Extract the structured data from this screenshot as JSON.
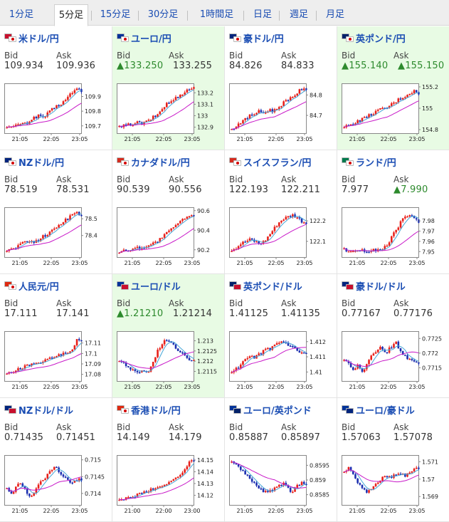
{
  "tabs": [
    {
      "label": "1分足",
      "active": false
    },
    {
      "label": "5分足",
      "active": true
    },
    {
      "label": "15分足",
      "active": false
    },
    {
      "label": "30分足",
      "active": false
    },
    {
      "label": "1時間足",
      "active": false
    },
    {
      "label": "日足",
      "active": false
    },
    {
      "label": "週足",
      "active": false
    },
    {
      "label": "月足",
      "active": false
    }
  ],
  "bid_label": "Bid",
  "ask_label": "Ask",
  "pairs": [
    {
      "name": "米ドル/円",
      "flags": [
        "us-flag-icon",
        "jp-flag-icon"
      ],
      "bid": "109.934",
      "ask": "109.936",
      "bid_up": false,
      "ask_up": false,
      "highlight": false,
      "chart_data": {
        "type": "candlestick",
        "xticks": [
          "21:05",
          "22:05",
          "23:05"
        ],
        "yticks": [
          "109.9",
          "109.8",
          "109.7"
        ],
        "ylim": [
          109.66,
          109.98
        ],
        "trend": [
          109.7,
          109.69,
          109.7,
          109.72,
          109.71,
          109.74,
          109.76,
          109.77,
          109.76,
          109.79,
          109.82,
          109.84,
          109.86,
          109.89,
          109.93,
          109.95,
          109.94
        ]
      }
    },
    {
      "name": "ユーロ/円",
      "flags": [
        "eu-flag-icon",
        "jp-flag-icon"
      ],
      "bid": "133.250",
      "ask": "133.255",
      "bid_up": true,
      "ask_up": false,
      "highlight": true,
      "chart_data": {
        "type": "candlestick",
        "xticks": [
          "21:05",
          "22:05",
          "23:05"
        ],
        "yticks": [
          "133.2",
          "133.1",
          "133",
          "132.9"
        ],
        "ylim": [
          132.86,
          133.27
        ],
        "trend": [
          132.9,
          132.91,
          132.92,
          132.93,
          132.94,
          132.93,
          132.95,
          132.98,
          133.0,
          133.05,
          133.1,
          133.12,
          133.15,
          133.18,
          133.21,
          133.23,
          133.25
        ]
      }
    },
    {
      "name": "豪ドル/円",
      "flags": [
        "au-flag-icon",
        "jp-flag-icon"
      ],
      "bid": "84.826",
      "ask": "84.833",
      "bid_up": false,
      "ask_up": false,
      "highlight": false,
      "chart_data": {
        "type": "candlestick",
        "xticks": [
          "21:05",
          "22:05",
          "23:05"
        ],
        "yticks": [
          "84.8",
          "84.7"
        ],
        "ylim": [
          84.62,
          84.85
        ],
        "trend": [
          84.63,
          84.65,
          84.67,
          84.68,
          84.7,
          84.71,
          84.72,
          84.71,
          84.73,
          84.72,
          84.74,
          84.76,
          84.78,
          84.79,
          84.81,
          84.83,
          84.82
        ]
      }
    },
    {
      "name": "英ポンド/円",
      "flags": [
        "gb-flag-icon",
        "jp-flag-icon"
      ],
      "bid": "155.140",
      "ask": "155.150",
      "bid_up": true,
      "ask_up": true,
      "highlight": true,
      "chart_data": {
        "type": "candlestick",
        "xticks": [
          "21:05",
          "22:05",
          "23:05"
        ],
        "yticks": [
          "155.2",
          "155",
          "154.8"
        ],
        "ylim": [
          154.78,
          155.22
        ],
        "trend": [
          154.82,
          154.84,
          154.86,
          154.88,
          154.9,
          154.92,
          154.95,
          154.97,
          154.99,
          155.0,
          155.03,
          155.06,
          155.09,
          155.11,
          155.14,
          155.16,
          155.14
        ]
      }
    },
    {
      "name": "NZドル/円",
      "flags": [
        "nz-flag-icon",
        "jp-flag-icon"
      ],
      "bid": "78.519",
      "ask": "78.531",
      "bid_up": false,
      "ask_up": false,
      "highlight": false,
      "chart_data": {
        "type": "candlestick",
        "xticks": [
          "21:05",
          "22:05",
          "23:05"
        ],
        "yticks": [
          "78.5",
          "78.4"
        ],
        "ylim": [
          78.28,
          78.56
        ],
        "trend": [
          78.31,
          78.32,
          78.33,
          78.35,
          78.36,
          78.37,
          78.36,
          78.38,
          78.4,
          78.41,
          78.44,
          78.46,
          78.48,
          78.5,
          78.53,
          78.54,
          78.52
        ]
      }
    },
    {
      "name": "カナダドル/円",
      "flags": [
        "ca-flag-icon",
        "jp-flag-icon"
      ],
      "bid": "90.539",
      "ask": "90.556",
      "bid_up": false,
      "ask_up": false,
      "highlight": false,
      "chart_data": {
        "type": "candlestick",
        "xticks": [
          "21:05",
          "22:05",
          "23:05"
        ],
        "yticks": [
          "90.6",
          "90.4",
          "90.2"
        ],
        "ylim": [
          90.14,
          90.62
        ],
        "trend": [
          90.18,
          90.19,
          90.2,
          90.21,
          90.22,
          90.23,
          90.24,
          90.26,
          90.28,
          90.32,
          90.36,
          90.4,
          90.45,
          90.48,
          90.52,
          90.55,
          90.54
        ]
      }
    },
    {
      "name": "スイスフラン/円",
      "flags": [
        "ch-flag-icon",
        "jp-flag-icon"
      ],
      "bid": "122.193",
      "ask": "122.211",
      "bid_up": false,
      "ask_up": false,
      "highlight": false,
      "chart_data": {
        "type": "candlestick",
        "xticks": [
          "21:05",
          "22:05",
          "23:05"
        ],
        "yticks": [
          "122.2",
          "122.1"
        ],
        "ylim": [
          122.03,
          122.26
        ],
        "trend": [
          122.06,
          122.07,
          122.09,
          122.1,
          122.11,
          122.1,
          122.09,
          122.1,
          122.13,
          122.16,
          122.19,
          122.21,
          122.22,
          122.23,
          122.22,
          122.2,
          122.19
        ]
      }
    },
    {
      "name": "ランド/円",
      "flags": [
        "za-flag-icon",
        "jp-flag-icon"
      ],
      "bid": "7.977",
      "ask": "7.990",
      "bid_up": false,
      "ask_up": true,
      "highlight": false,
      "chart_data": {
        "type": "candlestick",
        "xticks": [
          "21:05",
          "22:05",
          "23:05"
        ],
        "yticks": [
          "7.98",
          "7.97",
          "7.96",
          "7.95"
        ],
        "ylim": [
          7.946,
          7.992
        ],
        "trend": [
          7.952,
          7.951,
          7.951,
          7.952,
          7.951,
          7.95,
          7.951,
          7.952,
          7.951,
          7.955,
          7.962,
          7.97,
          7.978,
          7.984,
          7.986,
          7.982,
          7.978
        ]
      }
    },
    {
      "name": "人民元/円",
      "flags": [
        "cn-flag-icon",
        "jp-flag-icon"
      ],
      "bid": "17.111",
      "ask": "17.141",
      "bid_up": false,
      "ask_up": false,
      "highlight": false,
      "chart_data": {
        "type": "candlestick",
        "xticks": [
          "21:05",
          "22:05",
          "23:05"
        ],
        "yticks": [
          "17.11",
          "17.1",
          "17.09",
          "17.08"
        ],
        "ylim": [
          17.075,
          17.12
        ],
        "trend": [
          17.08,
          17.082,
          17.084,
          17.086,
          17.088,
          17.089,
          17.09,
          17.092,
          17.093,
          17.095,
          17.096,
          17.098,
          17.099,
          17.101,
          17.103,
          17.114,
          17.111
        ]
      }
    },
    {
      "name": "ユーロ/ドル",
      "flags": [
        "eu-flag-icon",
        "us-flag-icon"
      ],
      "bid": "1.21210",
      "ask": "1.21214",
      "bid_up": true,
      "ask_up": false,
      "highlight": true,
      "chart_data": {
        "type": "candlestick",
        "xticks": [
          "21:05",
          "22:05",
          "23:05"
        ],
        "yticks": [
          "1.213",
          "1.2125",
          "1.212",
          "1.2115"
        ],
        "ylim": [
          1.2111,
          1.2134
        ],
        "trend": [
          1.212,
          1.2119,
          1.2117,
          1.2115,
          1.2114,
          1.2116,
          1.2114,
          1.2118,
          1.2124,
          1.2128,
          1.2131,
          1.213,
          1.2127,
          1.2125,
          1.2123,
          1.2121,
          1.2121
        ]
      }
    },
    {
      "name": "英ポンド/ドル",
      "flags": [
        "gb-flag-icon",
        "us-flag-icon"
      ],
      "bid": "1.41125",
      "ask": "1.41135",
      "bid_up": false,
      "ask_up": false,
      "highlight": false,
      "chart_data": {
        "type": "candlestick",
        "xticks": [
          "21:05",
          "22:05",
          "23:05"
        ],
        "yticks": [
          "1.412",
          "1.411",
          "1.41"
        ],
        "ylim": [
          1.4095,
          1.4126
        ],
        "trend": [
          1.41,
          1.4102,
          1.4105,
          1.4108,
          1.411,
          1.4109,
          1.4112,
          1.4114,
          1.4115,
          1.4117,
          1.4119,
          1.412,
          1.4118,
          1.4116,
          1.4114,
          1.4112,
          1.4112
        ]
      }
    },
    {
      "name": "豪ドル/ドル",
      "flags": [
        "au-flag-icon",
        "us-flag-icon"
      ],
      "bid": "0.77167",
      "ask": "0.77176",
      "bid_up": false,
      "ask_up": false,
      "highlight": false,
      "chart_data": {
        "type": "candlestick",
        "xticks": [
          "21:05",
          "22:05",
          "23:05"
        ],
        "yticks": [
          "0.7725",
          "0.772",
          "0.7715"
        ],
        "ylim": [
          0.7711,
          0.7727
        ],
        "trend": [
          0.7718,
          0.7717,
          0.7714,
          0.7716,
          0.7713,
          0.7717,
          0.7719,
          0.7721,
          0.7722,
          0.772,
          0.7722,
          0.7724,
          0.7721,
          0.7719,
          0.7718,
          0.7717,
          0.7717
        ]
      }
    },
    {
      "name": "NZドル/ドル",
      "flags": [
        "nz-flag-icon",
        "us-flag-icon"
      ],
      "bid": "0.71435",
      "ask": "0.71451",
      "bid_up": false,
      "ask_up": false,
      "highlight": false,
      "chart_data": {
        "type": "candlestick",
        "xticks": [
          "21:05",
          "22:05",
          "23:05"
        ],
        "yticks": [
          "0.715",
          "0.7145",
          "0.714"
        ],
        "ylim": [
          0.7137,
          0.7151
        ],
        "trend": [
          0.7142,
          0.714,
          0.7142,
          0.7143,
          0.7141,
          0.7139,
          0.7141,
          0.7143,
          0.7144,
          0.7146,
          0.7148,
          0.7147,
          0.7145,
          0.7144,
          0.7143,
          0.7144,
          0.7144
        ]
      }
    },
    {
      "name": "香港ドル/円",
      "flags": [
        "hk-flag-icon",
        "jp-flag-icon"
      ],
      "bid": "14.149",
      "ask": "14.179",
      "bid_up": false,
      "ask_up": false,
      "highlight": false,
      "chart_data": {
        "type": "candlestick",
        "xticks": [
          "21:00",
          "22:00",
          "23:00"
        ],
        "yticks": [
          "14.15",
          "14.14",
          "14.13",
          "14.12"
        ],
        "ylim": [
          14.113,
          14.153
        ],
        "trend": [
          14.115,
          14.116,
          14.118,
          14.119,
          14.121,
          14.122,
          14.124,
          14.125,
          14.126,
          14.128,
          14.13,
          14.132,
          14.134,
          14.137,
          14.141,
          14.15,
          14.149
        ]
      }
    },
    {
      "name": "ユーロ/英ポンド",
      "flags": [
        "eu-flag-icon",
        "gb-flag-icon"
      ],
      "bid": "0.85887",
      "ask": "0.85897",
      "bid_up": false,
      "ask_up": false,
      "highlight": false,
      "chart_data": {
        "type": "candlestick",
        "xticks": [
          "21:05",
          "22:05",
          "23:05"
        ],
        "yticks": [
          "0.8595",
          "0.859",
          "0.8585"
        ],
        "ylim": [
          0.8582,
          0.8598
        ],
        "trend": [
          0.8596,
          0.8595,
          0.8593,
          0.8592,
          0.859,
          0.8589,
          0.8587,
          0.8586,
          0.8586,
          0.8587,
          0.8588,
          0.8589,
          0.8587,
          0.8586,
          0.8588,
          0.8589,
          0.8589
        ]
      }
    },
    {
      "name": "ユーロ/豪ドル",
      "flags": [
        "eu-flag-icon",
        "au-flag-icon"
      ],
      "bid": "1.57063",
      "ask": "1.57078",
      "bid_up": false,
      "ask_up": false,
      "highlight": false,
      "chart_data": {
        "type": "candlestick",
        "xticks": [
          "21:05",
          "22:05",
          "23:05"
        ],
        "yticks": [
          "1.571",
          "1.57",
          "1.569"
        ],
        "ylim": [
          1.5686,
          1.5713
        ],
        "trend": [
          1.5704,
          1.5706,
          1.5702,
          1.5698,
          1.5694,
          1.5692,
          1.5695,
          1.5698,
          1.57,
          1.5702,
          1.5701,
          1.5703,
          1.5704,
          1.5702,
          1.5703,
          1.5706,
          1.5706
        ]
      }
    }
  ],
  "colors": {
    "link": "#1a4db3",
    "up": "#2d8a2d",
    "candle_up": "#e8201a",
    "candle_down": "#1c2fb0",
    "ma_short": "#47a7d8",
    "ma_long": "#c818c8",
    "highlight_bg": "#e8fbe4"
  }
}
